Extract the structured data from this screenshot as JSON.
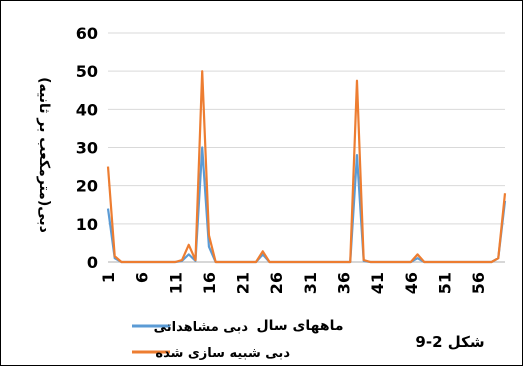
{
  "chart_data": {
    "type": "line",
    "title": "",
    "xlabel": "ماههای سال",
    "ylabel": "دبی(مترمکعب بر ثانیه)",
    "ylim": [
      0,
      60
    ],
    "yticks": [
      0,
      10,
      20,
      30,
      40,
      50,
      60
    ],
    "xlim": [
      1,
      60
    ],
    "xticks": [
      1,
      6,
      11,
      16,
      21,
      26,
      31,
      36,
      41,
      46,
      51,
      56
    ],
    "grid": "horizontal",
    "legend_position": "bottom-right",
    "x": [
      1,
      2,
      3,
      4,
      5,
      6,
      7,
      8,
      9,
      10,
      11,
      12,
      13,
      14,
      15,
      16,
      17,
      18,
      19,
      20,
      21,
      22,
      23,
      24,
      25,
      26,
      27,
      28,
      29,
      30,
      31,
      32,
      33,
      34,
      35,
      36,
      37,
      38,
      39,
      40,
      41,
      42,
      43,
      44,
      45,
      46,
      47,
      48,
      49,
      50,
      51,
      52,
      53,
      54,
      55,
      56,
      57,
      58,
      59,
      60
    ],
    "series": [
      {
        "name": "دبی مشاهداتی",
        "color": "#5B9BD5",
        "values": [
          14,
          1,
          0,
          0,
          0,
          0,
          0,
          0,
          0,
          0,
          0,
          0.3,
          2,
          0.3,
          30,
          4,
          0,
          0,
          0,
          0,
          0,
          0,
          0,
          2,
          0,
          0,
          0,
          0,
          0,
          0,
          0,
          0,
          0,
          0,
          0,
          0,
          0,
          28,
          0.3,
          0,
          0,
          0,
          0,
          0,
          0,
          0,
          1,
          0,
          0,
          0,
          0,
          0,
          0,
          0,
          0,
          0,
          0,
          0,
          1,
          16
        ]
      },
      {
        "name": "دبی شبیه سازی شده",
        "color": "#ED7D31",
        "values": [
          25,
          1.5,
          0,
          0,
          0,
          0,
          0,
          0,
          0,
          0,
          0,
          0.5,
          4.5,
          0.5,
          50,
          7,
          0,
          0,
          0,
          0,
          0,
          0,
          0,
          2.8,
          0,
          0,
          0,
          0,
          0,
          0,
          0,
          0,
          0,
          0,
          0,
          0,
          0,
          47.5,
          0.5,
          0,
          0,
          0,
          0,
          0,
          0,
          0,
          2,
          0,
          0,
          0,
          0,
          0,
          0,
          0,
          0,
          0,
          0,
          0,
          1,
          18
        ]
      }
    ]
  },
  "caption": "شکل 2-9"
}
